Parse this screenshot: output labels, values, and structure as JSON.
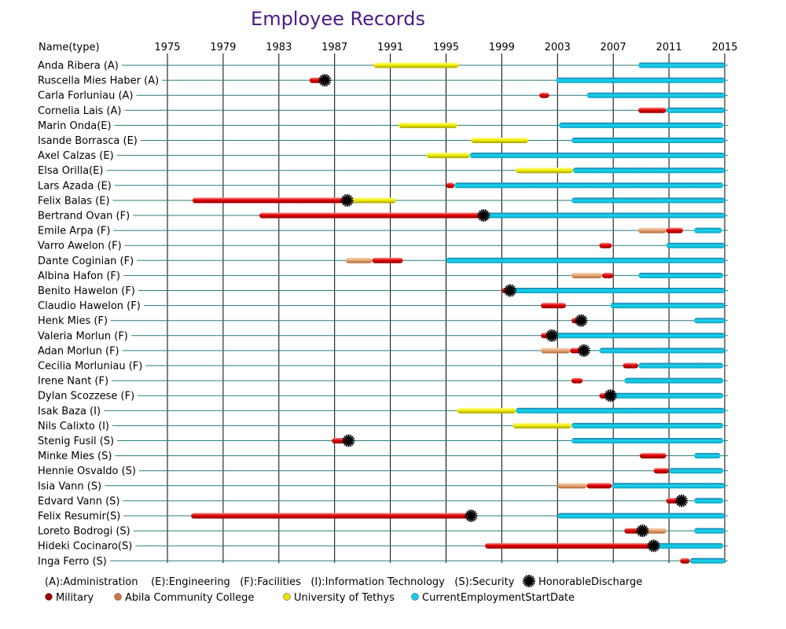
{
  "chart_data": {
    "type": "timeline",
    "title": "Employee Records",
    "name_header": "Name(type)",
    "x_ticks": [
      1975,
      1979,
      1983,
      1987,
      1991,
      1995,
      1999,
      2003,
      2007,
      2011,
      2015
    ],
    "xlim": [
      1975,
      2015
    ],
    "grid": true,
    "colors": {
      "military": "#e00000",
      "college": "#e8a878",
      "university": "#f2f000",
      "current": "#18d8f0",
      "current_top": "#1878a8",
      "grid": "#000000",
      "row_line": "#2a7a7a"
    },
    "legend": {
      "types_text": "(A):Administration    (E):Engineering   (F):Facilities   (I):Information Technology   (S):Security",
      "honorable": "HonorableDischarge",
      "military": "Military",
      "college": "Abila Community College",
      "university": "University of Tethys",
      "current": "CurrentEmploymentStartDate"
    },
    "employees": [
      {
        "name": "Anda Ribera (A)",
        "university": [
          1989.8,
          1995.9
        ],
        "current": [
          2008.8,
          2015
        ]
      },
      {
        "name": "Ruscella Mies Haber (A)",
        "military": [
          1985.2,
          1986.3
        ],
        "honorable": 1986.3,
        "current": [
          2002.9,
          2015
        ]
      },
      {
        "name": "Carla Forluniau (A)",
        "military": [
          2001.7,
          2002.4
        ],
        "current": [
          2005.1,
          2015
        ]
      },
      {
        "name": "Cornelia Lais (A)",
        "military": [
          2008.8,
          2010.8
        ],
        "current": [
          2010.8,
          2015
        ]
      },
      {
        "name": "Marin Onda(E)",
        "university": [
          1991.6,
          1995.8
        ],
        "current": [
          2003.1,
          2014.9
        ]
      },
      {
        "name": "Isande Borrasca (E)",
        "university": [
          1996.8,
          2000.9
        ],
        "current": [
          2004,
          2015
        ]
      },
      {
        "name": "Axel Calzas (E)",
        "university": [
          1993.6,
          1996.7
        ],
        "current": [
          1996.7,
          2015
        ]
      },
      {
        "name": "Elsa Orilla(E)",
        "university": [
          2000,
          2004.1
        ],
        "current": [
          2004.1,
          2015
        ]
      },
      {
        "name": "Lars Azada (E)",
        "military": [
          1995,
          1995.6
        ],
        "current": [
          1995.6,
          2014.9
        ]
      },
      {
        "name": "Felix Balas (E)",
        "military": [
          1976.8,
          1987.9
        ],
        "honorable": 1987.9,
        "university": [
          1987.9,
          1991.4
        ],
        "current": [
          2004,
          2015
        ]
      },
      {
        "name": "Bertrand Ovan (F)",
        "military": [
          1981.6,
          1997.7
        ],
        "honorable": 1997.7,
        "current": [
          1997.7,
          2015
        ]
      },
      {
        "name": "Emile Arpa (F)",
        "college": [
          2008.8,
          2010.8
        ],
        "military": [
          2010.8,
          2012
        ],
        "current": [
          2012.8,
          2014.8
        ]
      },
      {
        "name": "Varro Awelon (F)",
        "military": [
          2006,
          2006.9
        ],
        "current": [
          2010.8,
          2015
        ]
      },
      {
        "name": "Dante Coginian (F)",
        "college": [
          1987.8,
          1989.7
        ],
        "military": [
          1989.7,
          1991.9
        ],
        "current": [
          1995,
          2015
        ]
      },
      {
        "name": "Albina Hafon (F)",
        "college": [
          2004,
          2006.2
        ],
        "military": [
          2006.2,
          2007
        ],
        "current": [
          2008.8,
          2014.9
        ]
      },
      {
        "name": "Benito Hawelon (F)",
        "military": [
          1999,
          1999.6
        ],
        "honorable": 1999.6,
        "current": [
          1999.6,
          2015
        ]
      },
      {
        "name": "Claudio Hawelon (F)",
        "military": [
          2001.8,
          2003.6
        ],
        "current": [
          2006.8,
          2015
        ]
      },
      {
        "name": "Henk Mies (F)",
        "military": [
          2004,
          2004.7
        ],
        "honorable": 2004.7,
        "current": [
          2012.8,
          2015
        ]
      },
      {
        "name": "Valeria Morlun (F)",
        "military": [
          2001.8,
          2002.6
        ],
        "honorable": 2002.6,
        "current": [
          2002.6,
          2015
        ]
      },
      {
        "name": "Adan Morlun (F)",
        "college": [
          2001.8,
          2003.9
        ],
        "military": [
          2003.9,
          2004.9
        ],
        "honorable": 2004.9,
        "current": [
          2006,
          2015
        ]
      },
      {
        "name": "Cecilia Morluniau (F)",
        "military": [
          2007.7,
          2008.8
        ],
        "current": [
          2008.8,
          2014.9
        ]
      },
      {
        "name": "Irene Nant (F)",
        "military": [
          2004,
          2004.8
        ],
        "current": [
          2007.8,
          2014.9
        ]
      },
      {
        "name": "Dylan Scozzese (F)",
        "military": [
          2006,
          2006.8
        ],
        "honorable": 2006.8,
        "current": [
          2006.8,
          2014.9
        ]
      },
      {
        "name": "Isak Baza (I)",
        "university": [
          1995.8,
          2000
        ],
        "current": [
          2000,
          2015
        ]
      },
      {
        "name": "Nils Calixto (I)",
        "university": [
          1999.8,
          2004
        ],
        "current": [
          2004,
          2014.9
        ]
      },
      {
        "name": "Stenig Fusil (S)",
        "military": [
          1986.8,
          1988
        ],
        "honorable": 1988,
        "current": [
          2004,
          2014.9
        ]
      },
      {
        "name": "Minke Mies (S)",
        "military": [
          2008.9,
          2010.8
        ],
        "current": [
          2012.8,
          2014.7
        ]
      },
      {
        "name": "Hennie Osvaldo (S)",
        "military": [
          2009.9,
          2011
        ],
        "current": [
          2011,
          2014.9
        ]
      },
      {
        "name": "Isia Vann (S)",
        "college": [
          2003,
          2005.1
        ],
        "military": [
          2005.1,
          2006.9
        ],
        "current": [
          2006.9,
          2015
        ]
      },
      {
        "name": "Edvard Vann (S)",
        "military": [
          2010.8,
          2011.9
        ],
        "honorable": 2011.9,
        "current": [
          2012.8,
          2014.9
        ]
      },
      {
        "name": "Felix Resumir(S)",
        "military": [
          1976.7,
          1996.8
        ],
        "honorable": 1996.8,
        "current": [
          2003,
          2015
        ]
      },
      {
        "name": "Loreto Bodrogi (S)",
        "military": [
          2007.8,
          2009.1
        ],
        "college": [
          2009.1,
          2010.8
        ],
        "honorable": 2009.1,
        "current": [
          2012.8,
          2015
        ]
      },
      {
        "name": "Hideki Cocinaro(S)",
        "military": [
          1997.8,
          2009.9
        ],
        "honorable": 2009.9,
        "current": [
          2009.9,
          2014.9
        ]
      },
      {
        "name": "Inga Ferro (S)",
        "military": [
          2011.8,
          2012.5
        ],
        "current": [
          2012.5,
          2015
        ]
      }
    ]
  }
}
